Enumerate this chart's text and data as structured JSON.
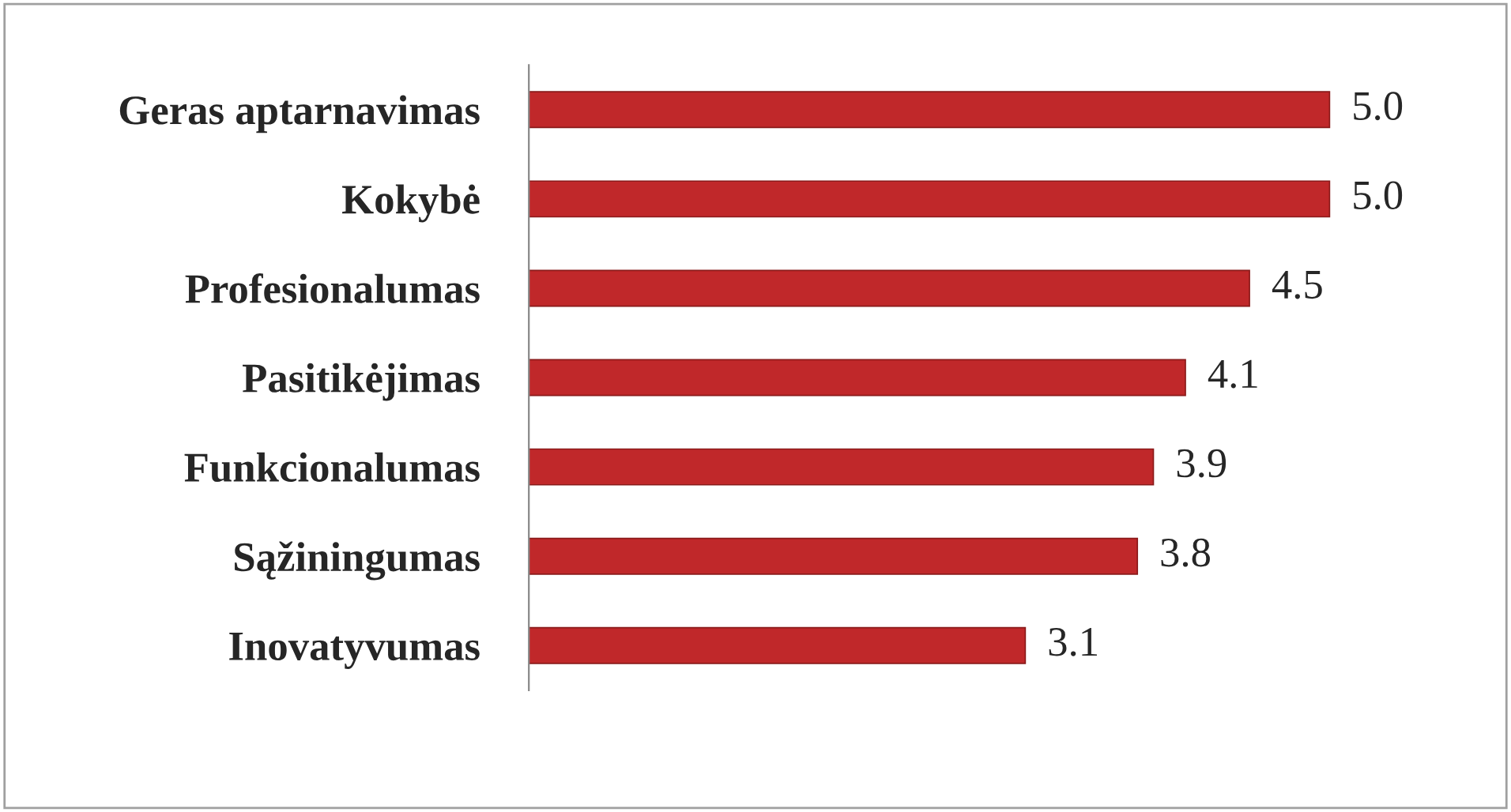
{
  "chart_data": {
    "type": "bar",
    "orientation": "horizontal",
    "categories": [
      "Geras aptarnavimas",
      "Kokybė",
      "Profesionalumas",
      "Pasitikėjimas",
      "Funkcionalumas",
      "Sąžiningumas",
      "Inovatyvumas"
    ],
    "values": [
      5.0,
      5.0,
      4.5,
      4.1,
      3.9,
      3.8,
      3.1
    ],
    "value_labels": [
      "5.0",
      "5.0",
      "4.5",
      "4.1",
      "3.9",
      "3.8",
      "3.1"
    ],
    "color": "#c0282a",
    "grid": false,
    "legend": false
  }
}
